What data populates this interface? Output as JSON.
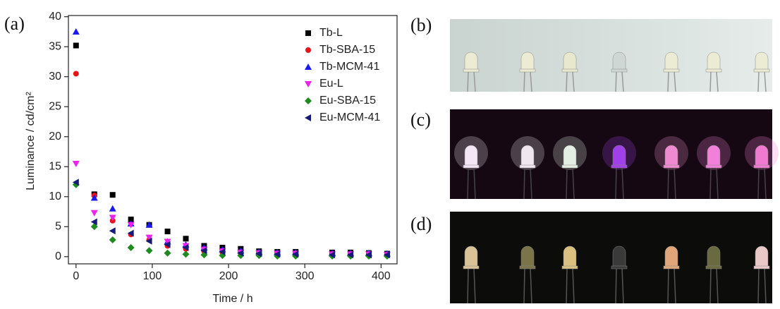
{
  "chart_data": {
    "type": "scatter",
    "panel_label": "(a)",
    "xlabel": "Time / h",
    "ylabel": "Luminance / cd/cm²",
    "xlim": [
      -10,
      421
    ],
    "ylim": [
      -1.2,
      40.2
    ],
    "xticks": [
      0,
      100,
      200,
      300,
      400
    ],
    "yticks": [
      0,
      5,
      10,
      15,
      20,
      25,
      30,
      35,
      40
    ],
    "legend": "top-right",
    "x": [
      0,
      24,
      48,
      72,
      96,
      120,
      144,
      168,
      192,
      216,
      240,
      264,
      288,
      336,
      360,
      384,
      408
    ],
    "series": [
      {
        "name": "Tb-L",
        "color": "#000000",
        "marker": "square",
        "values": [
          35.2,
          10.4,
          10.3,
          6.2,
          5.3,
          4.2,
          3.0,
          1.8,
          1.5,
          1.3,
          0.9,
          0.8,
          0.8,
          0.7,
          0.7,
          0.6,
          0.5
        ]
      },
      {
        "name": "Tb-SBA-15",
        "color": "#e8141b",
        "marker": "circle",
        "values": [
          30.5,
          10.2,
          6.0,
          3.7,
          2.8,
          1.8,
          1.3,
          0.9,
          0.7,
          0.6,
          0.5,
          0.5,
          0.4,
          0.4,
          0.4,
          0.4,
          0.3
        ]
      },
      {
        "name": "Tb-MCM-41",
        "color": "#1a1aef",
        "marker": "triangle-up",
        "values": [
          37.5,
          9.8,
          8.0,
          5.5,
          5.3,
          2.5,
          2.0,
          1.5,
          1.2,
          1.0,
          0.8,
          0.7,
          0.7,
          0.6,
          0.6,
          0.6,
          0.5
        ]
      },
      {
        "name": "Eu-L",
        "color": "#ee22ee",
        "marker": "triangle-down",
        "values": [
          15.5,
          7.3,
          6.5,
          5.3,
          3.2,
          2.5,
          1.8,
          1.2,
          0.9,
          0.7,
          0.6,
          0.5,
          0.5,
          0.4,
          0.4,
          0.4,
          0.3
        ]
      },
      {
        "name": "Eu-SBA-15",
        "color": "#1f8a1f",
        "marker": "diamond",
        "values": [
          12.0,
          5.0,
          2.8,
          1.5,
          1.0,
          0.6,
          0.4,
          0.3,
          0.2,
          0.2,
          0.2,
          0.1,
          0.1,
          0.1,
          0.1,
          0.1,
          0.1
        ]
      },
      {
        "name": "Eu-MCM-41",
        "color": "#161a78",
        "marker": "triangle-left",
        "values": [
          12.4,
          5.8,
          4.3,
          3.9,
          2.6,
          2.0,
          1.5,
          1.0,
          0.8,
          0.6,
          0.5,
          0.4,
          0.4,
          0.3,
          0.3,
          0.3,
          0.3
        ]
      }
    ]
  },
  "photo_panels": [
    "(b)",
    "(c)",
    "(d)"
  ]
}
